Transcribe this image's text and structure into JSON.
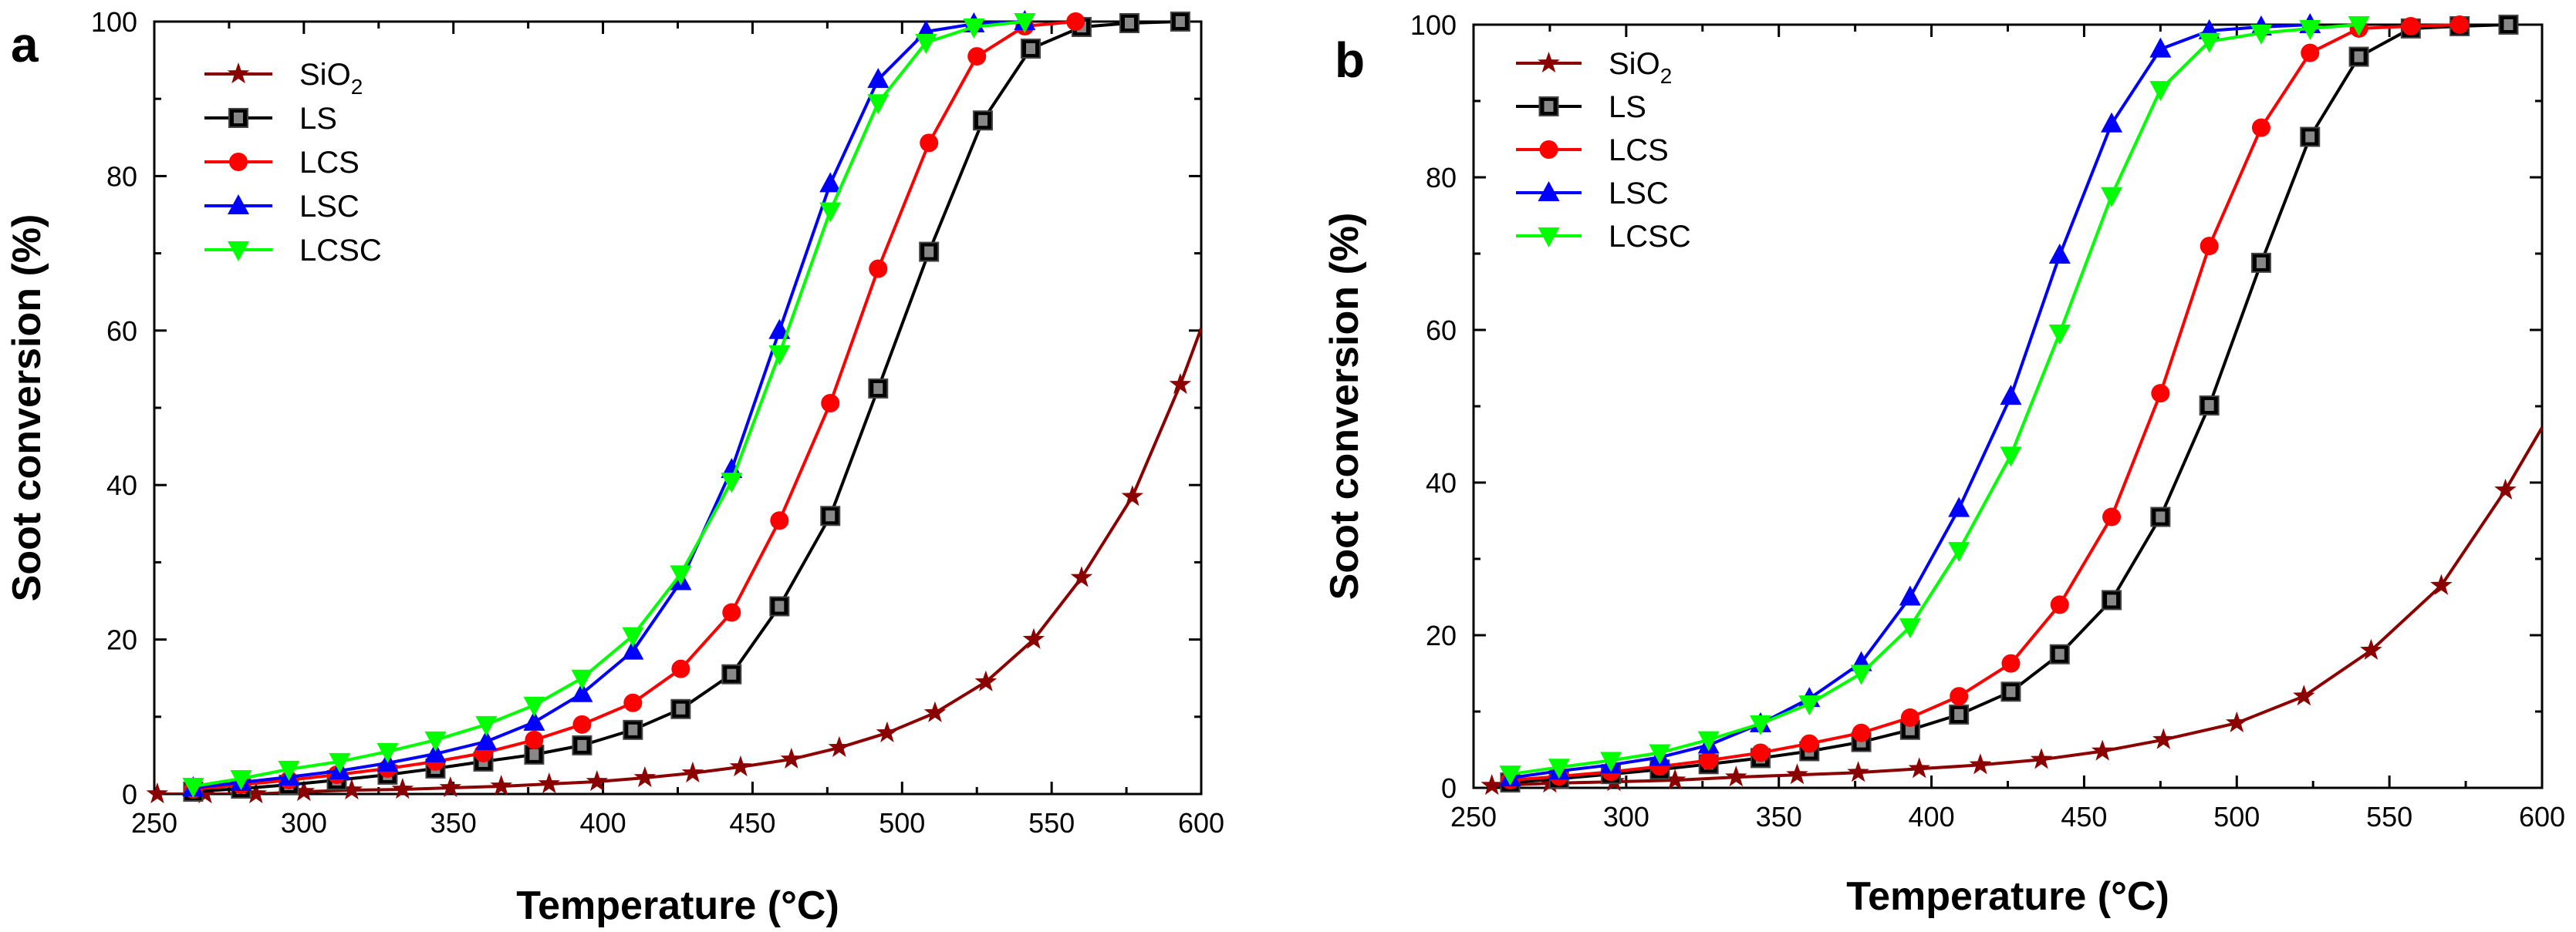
{
  "chart_data": [
    {
      "panel": "a",
      "type": "line",
      "xlabel": "Temperature (°C)",
      "ylabel": "Soot conversion (%)",
      "xlim": [
        250,
        600
      ],
      "ylim": [
        0,
        100
      ],
      "xticks": [
        250,
        300,
        350,
        400,
        450,
        500,
        550,
        600
      ],
      "yticks": [
        0,
        20,
        40,
        60,
        80,
        100
      ],
      "grid": false,
      "legend_position": "top-left",
      "series": [
        {
          "name": "SiO2",
          "label_main": "SiO",
          "label_sub": "2",
          "color": "#8B0000",
          "marker": "star",
          "x": [
            251,
            267,
            284,
            300,
            316,
            333,
            349,
            366,
            382,
            398,
            414,
            430,
            446,
            463,
            479,
            495,
            511,
            528,
            544,
            560,
            577,
            593
          ],
          "y": [
            0,
            0,
            0,
            0.3,
            0.5,
            0.6,
            0.8,
            1.0,
            1.3,
            1.6,
            2.1,
            2.7,
            3.5,
            4.5,
            6.0,
            7.9,
            10.5,
            14.5,
            20,
            28,
            38.5,
            53
          ]
        },
        {
          "name": "LS",
          "color": "#000000",
          "marker": "square",
          "x": [
            263,
            279,
            295,
            311,
            328,
            344,
            360,
            377,
            393,
            410,
            426,
            443,
            459,
            476,
            492,
            509,
            527,
            543,
            560,
            576,
            593
          ],
          "y": [
            0.3,
            0.7,
            1.2,
            1.8,
            2.5,
            3.3,
            4.2,
            5.1,
            6.3,
            8.3,
            11.0,
            15.5,
            24.3,
            36.0,
            52.5,
            70.2,
            87.2,
            96.5,
            99.3,
            99.8,
            100
          ]
        },
        {
          "name": "LCS",
          "color": "#FF0000",
          "marker": "circle",
          "x": [
            263,
            279,
            295,
            311,
            328,
            344,
            360,
            377,
            393,
            410,
            426,
            443,
            459,
            476,
            492,
            509,
            525,
            541,
            558
          ],
          "y": [
            0.6,
            1.2,
            1.8,
            2.5,
            3.3,
            4.2,
            5.3,
            7.0,
            9.0,
            11.8,
            16.2,
            23.5,
            35.4,
            50.6,
            68.0,
            84.3,
            95.5,
            99.4,
            100
          ]
        },
        {
          "name": "LSC",
          "color": "#0000FF",
          "marker": "triangle-up",
          "x": [
            263,
            279,
            295,
            312,
            328,
            344,
            361,
            377,
            393,
            410,
            426,
            443,
            459,
            476,
            492,
            508,
            524,
            541
          ],
          "y": [
            0.8,
            1.5,
            2.2,
            3.0,
            4.0,
            5.2,
            6.8,
            9.3,
            13.0,
            18.5,
            27.5,
            42.0,
            60.0,
            79.0,
            92.5,
            98.7,
            99.7,
            100
          ]
        },
        {
          "name": "LCSC",
          "color": "#00FF00",
          "marker": "triangle-down",
          "x": [
            263,
            279,
            295,
            312,
            328,
            344,
            361,
            377,
            393,
            410,
            426,
            443,
            459,
            476,
            492,
            508,
            524,
            541
          ],
          "y": [
            1.0,
            2.0,
            3.2,
            4.2,
            5.5,
            7.0,
            9.0,
            11.5,
            15.0,
            20.5,
            28.5,
            40.5,
            57.0,
            75.5,
            89.5,
            97.3,
            99.3,
            100
          ]
        }
      ]
    },
    {
      "panel": "b",
      "type": "line",
      "xlabel": "Temperature (°C)",
      "ylabel": "Soot conversion (%)",
      "xlim": [
        250,
        600
      ],
      "ylim": [
        0,
        100
      ],
      "xticks": [
        250,
        300,
        350,
        400,
        450,
        500,
        550,
        600
      ],
      "yticks": [
        0,
        20,
        40,
        60,
        80,
        100
      ],
      "grid": false,
      "legend_position": "top-left",
      "series": [
        {
          "name": "SiO2",
          "label_main": "SiO",
          "label_sub": "2",
          "color": "#8B0000",
          "marker": "star",
          "x": [
            256,
            275,
            296,
            316,
            336,
            356,
            376,
            396,
            416,
            436,
            456,
            476,
            500,
            522,
            544,
            567,
            588
          ],
          "y": [
            0.3,
            0.6,
            0.8,
            1.0,
            1.4,
            1.7,
            2.0,
            2.5,
            3.0,
            3.7,
            4.8,
            6.3,
            8.5,
            12.0,
            18.0,
            26.5,
            39.0
          ]
        },
        {
          "name": "LS",
          "color": "#000000",
          "marker": "square",
          "x": [
            262,
            278,
            295,
            311,
            327,
            344,
            360,
            377,
            393,
            409,
            426,
            442,
            459,
            475,
            491,
            508,
            524,
            540,
            557,
            573,
            589
          ],
          "y": [
            0.7,
            1.2,
            1.8,
            2.4,
            3.1,
            3.9,
            4.8,
            6.0,
            7.6,
            9.6,
            12.6,
            17.5,
            24.6,
            35.5,
            50.1,
            68.8,
            85.3,
            95.8,
            99.5,
            99.8,
            100
          ]
        },
        {
          "name": "LCS",
          "color": "#FF0000",
          "marker": "circle",
          "x": [
            262,
            278,
            295,
            311,
            327,
            344,
            360,
            377,
            393,
            409,
            426,
            442,
            459,
            475,
            491,
            508,
            524,
            540,
            557,
            573
          ],
          "y": [
            1.0,
            1.5,
            2.1,
            2.8,
            3.6,
            4.6,
            5.8,
            7.2,
            9.2,
            12.0,
            16.3,
            24.0,
            35.5,
            51.7,
            71.0,
            86.5,
            96.3,
            99.5,
            99.8,
            100
          ]
        },
        {
          "name": "LSC",
          "color": "#0000FF",
          "marker": "triangle-up",
          "x": [
            262,
            278,
            295,
            311,
            327,
            344,
            360,
            377,
            393,
            409,
            426,
            442,
            459,
            475,
            491,
            508,
            524
          ],
          "y": [
            1.3,
            2.2,
            3.0,
            4.0,
            5.6,
            8.4,
            11.7,
            16.4,
            25.0,
            36.6,
            51.3,
            69.8,
            87.0,
            96.8,
            99.2,
            99.7,
            100
          ]
        },
        {
          "name": "LCSC",
          "color": "#00FF00",
          "marker": "triangle-down",
          "x": [
            262,
            278,
            295,
            311,
            327,
            344,
            360,
            377,
            393,
            409,
            426,
            442,
            459,
            475,
            491,
            508,
            524,
            540
          ],
          "y": [
            1.8,
            2.7,
            3.6,
            4.6,
            6.3,
            8.4,
            11.0,
            15.0,
            21.1,
            31.1,
            43.6,
            59.6,
            77.6,
            91.5,
            97.8,
            98.9,
            99.5,
            100
          ]
        }
      ]
    }
  ]
}
